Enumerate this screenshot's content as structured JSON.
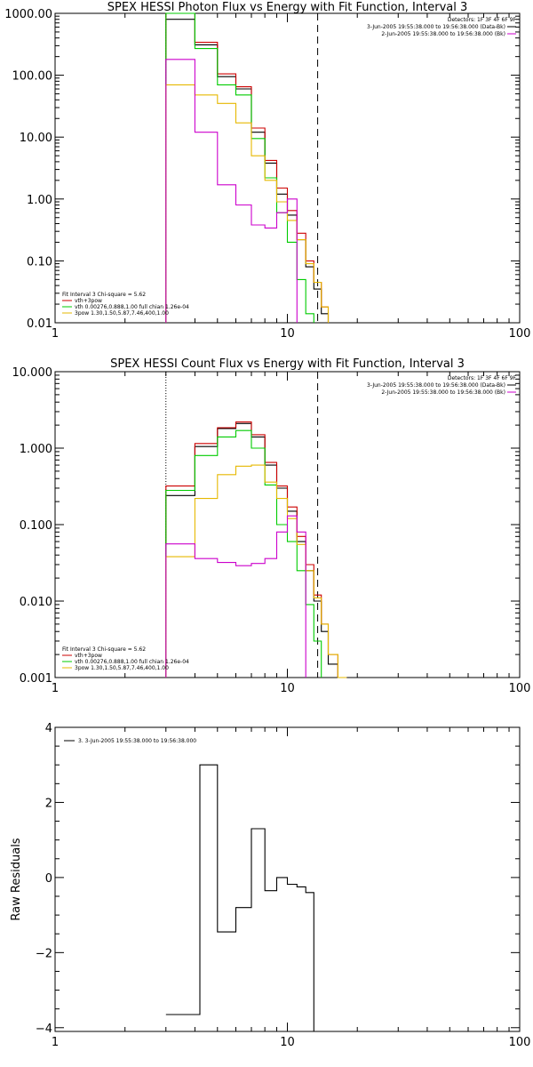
{
  "chart_data": [
    {
      "type": "line",
      "title": "SPEX HESSI Photon Flux vs Energy with Fit Function, Interval 3",
      "xscale": "log",
      "yscale": "log",
      "xlim": [
        1,
        100
      ],
      "ylim": [
        0.01,
        1000
      ],
      "xticks": [
        "1",
        "10",
        "100"
      ],
      "yticks": [
        "0.01",
        "0.10",
        "1.00",
        "10.00",
        "100.00",
        "1000.00"
      ],
      "vlines": [
        {
          "x": 3.0,
          "style": "dotted"
        },
        {
          "x": 13.5,
          "style": "dashed"
        }
      ],
      "legend_top": {
        "line1": "Detectors: 1F 3F 4F 6F 9F",
        "entries": [
          {
            "label": "3-Jun-2005 19:55:38.000 to 19:56:38.000 (Data-Bk)",
            "color": "#000000"
          },
          {
            "label": "2-Jun-2005 19:55:38.000 to 19:56:38.000 (Bk)",
            "color": "#cc00cc"
          }
        ]
      },
      "legend_bottom": {
        "header": "Fit Interval 3   Chi-square = 5.62",
        "entries": [
          {
            "label": "vth+3pow",
            "color": "#cc0000"
          },
          {
            "label": "vth 0.00276,0.888,1.00  full chian 1.26e-04",
            "color": "#00cc00"
          },
          {
            "label": "3pow 1.30,1.50,5.87,7.46,400,1.00",
            "color": "#e6b800"
          }
        ]
      },
      "edges": [
        3.0,
        4.0,
        5.0,
        6.0,
        7.0,
        8.0,
        9.0,
        10.0,
        11.0,
        12.0,
        13.0,
        14.0,
        15.0,
        16.5
      ],
      "series": [
        {
          "name": "Data-Bk",
          "color": "#000000",
          "values": [
            800,
            310,
            95,
            60,
            12,
            3.8,
            1.2,
            0.55,
            0.22,
            0.08,
            0.035,
            0.014,
            null
          ]
        },
        {
          "name": "vth+3pow",
          "color": "#cc0000",
          "values": [
            1000,
            340,
            105,
            65,
            14,
            4.2,
            1.5,
            0.65,
            0.28,
            0.1,
            0.045,
            0.018,
            null
          ]
        },
        {
          "name": "vth",
          "color": "#00cc00",
          "values": [
            1000,
            270,
            70,
            48,
            9.5,
            2.2,
            0.6,
            0.2,
            0.05,
            0.014,
            null,
            null,
            null
          ]
        },
        {
          "name": "3pow",
          "color": "#e6b800",
          "values": [
            70,
            48,
            35,
            17,
            5,
            2,
            0.9,
            0.45,
            0.22,
            0.09,
            0.045,
            0.018,
            null
          ]
        },
        {
          "name": "Bk",
          "color": "#cc00cc",
          "values": [
            180,
            12,
            1.7,
            0.8,
            0.38,
            0.34,
            0.6,
            1.0,
            null,
            null,
            null,
            null,
            null
          ]
        }
      ]
    },
    {
      "type": "line",
      "title": "SPEX HESSI Count Flux vs Energy with Fit Function, Interval 3",
      "xscale": "log",
      "yscale": "log",
      "xlim": [
        1,
        100
      ],
      "ylim": [
        0.001,
        10
      ],
      "xticks": [
        "1",
        "10",
        "100"
      ],
      "yticks": [
        "0.001",
        "0.010",
        "0.100",
        "1.000",
        "10.000"
      ],
      "vlines": [
        {
          "x": 3.0,
          "style": "dotted"
        },
        {
          "x": 13.5,
          "style": "dashed"
        }
      ],
      "legend_top": {
        "line1": "Detectors: 1F 3F 4F 6F 9F",
        "entries": [
          {
            "label": "3-Jun-2005 19:55:38.000 to 19:56:38.000 (Data-Bk)",
            "color": "#000000"
          },
          {
            "label": "2-Jun-2005 19:55:38.000 to 19:56:38.000 (Bk)",
            "color": "#cc00cc"
          }
        ]
      },
      "legend_bottom": {
        "header": "Fit Interval 3   Chi-square = 5.62",
        "entries": [
          {
            "label": "vth+3pow",
            "color": "#cc0000"
          },
          {
            "label": "vth 0.00276,0.888,1.00  full chian 1.26e-04",
            "color": "#00cc00"
          },
          {
            "label": "3pow 1.30,1.50,5.87,7.46,400,1.00",
            "color": "#e6b800"
          }
        ]
      },
      "edges": [
        3.0,
        4.0,
        5.0,
        6.0,
        7.0,
        8.0,
        9.0,
        10.0,
        11.0,
        12.0,
        13.0,
        14.0,
        15.0,
        16.5,
        18.0
      ],
      "series": [
        {
          "name": "Data-Bk",
          "color": "#000000",
          "values": [
            0.24,
            1.05,
            1.8,
            2.1,
            1.4,
            0.6,
            0.3,
            0.15,
            0.06,
            0.025,
            0.01,
            0.004,
            0.0015,
            null
          ]
        },
        {
          "name": "vth+3pow",
          "color": "#cc0000",
          "values": [
            0.32,
            1.15,
            1.85,
            2.2,
            1.5,
            0.65,
            0.32,
            0.17,
            0.07,
            0.03,
            0.012,
            0.005,
            0.002,
            0.001
          ]
        },
        {
          "name": "vth",
          "color": "#00cc00",
          "values": [
            0.28,
            0.8,
            1.4,
            1.7,
            1.0,
            0.33,
            0.1,
            0.06,
            0.025,
            0.009,
            0.003,
            null,
            null,
            null
          ]
        },
        {
          "name": "3pow",
          "color": "#e6b800",
          "values": [
            0.038,
            0.22,
            0.45,
            0.58,
            0.6,
            0.36,
            0.22,
            0.12,
            0.055,
            0.025,
            0.011,
            0.005,
            0.002,
            0.001
          ]
        },
        {
          "name": "Bk",
          "color": "#cc00cc",
          "values": [
            0.056,
            0.036,
            0.032,
            0.029,
            0.031,
            0.036,
            0.08,
            0.13,
            0.08,
            null,
            null,
            null,
            null,
            null
          ]
        }
      ]
    },
    {
      "type": "line",
      "ylabel": "Raw Residuals",
      "xscale": "log",
      "yscale": "linear",
      "xlim": [
        1,
        100
      ],
      "ylim": [
        -4.1,
        4
      ],
      "xticks": [
        "1",
        "10",
        "100"
      ],
      "yticks": [
        "-4",
        "-2",
        "0",
        "2",
        "4"
      ],
      "legend": {
        "label": "3. 3-Jun-2005 19:55:38.000 to 19:56:38.000",
        "color": "#000000"
      },
      "edges": [
        3.0,
        4.2,
        5.0,
        6.0,
        7.0,
        8.0,
        9.0,
        10.0,
        11.0,
        12.0,
        13.0
      ],
      "series": [
        {
          "name": "",
          "color": "#000000",
          "values": [
            -3.65,
            3.0,
            -1.45,
            -0.8,
            1.3,
            -0.35,
            0.0,
            -0.18,
            -0.25,
            -0.4
          ]
        }
      ]
    }
  ]
}
